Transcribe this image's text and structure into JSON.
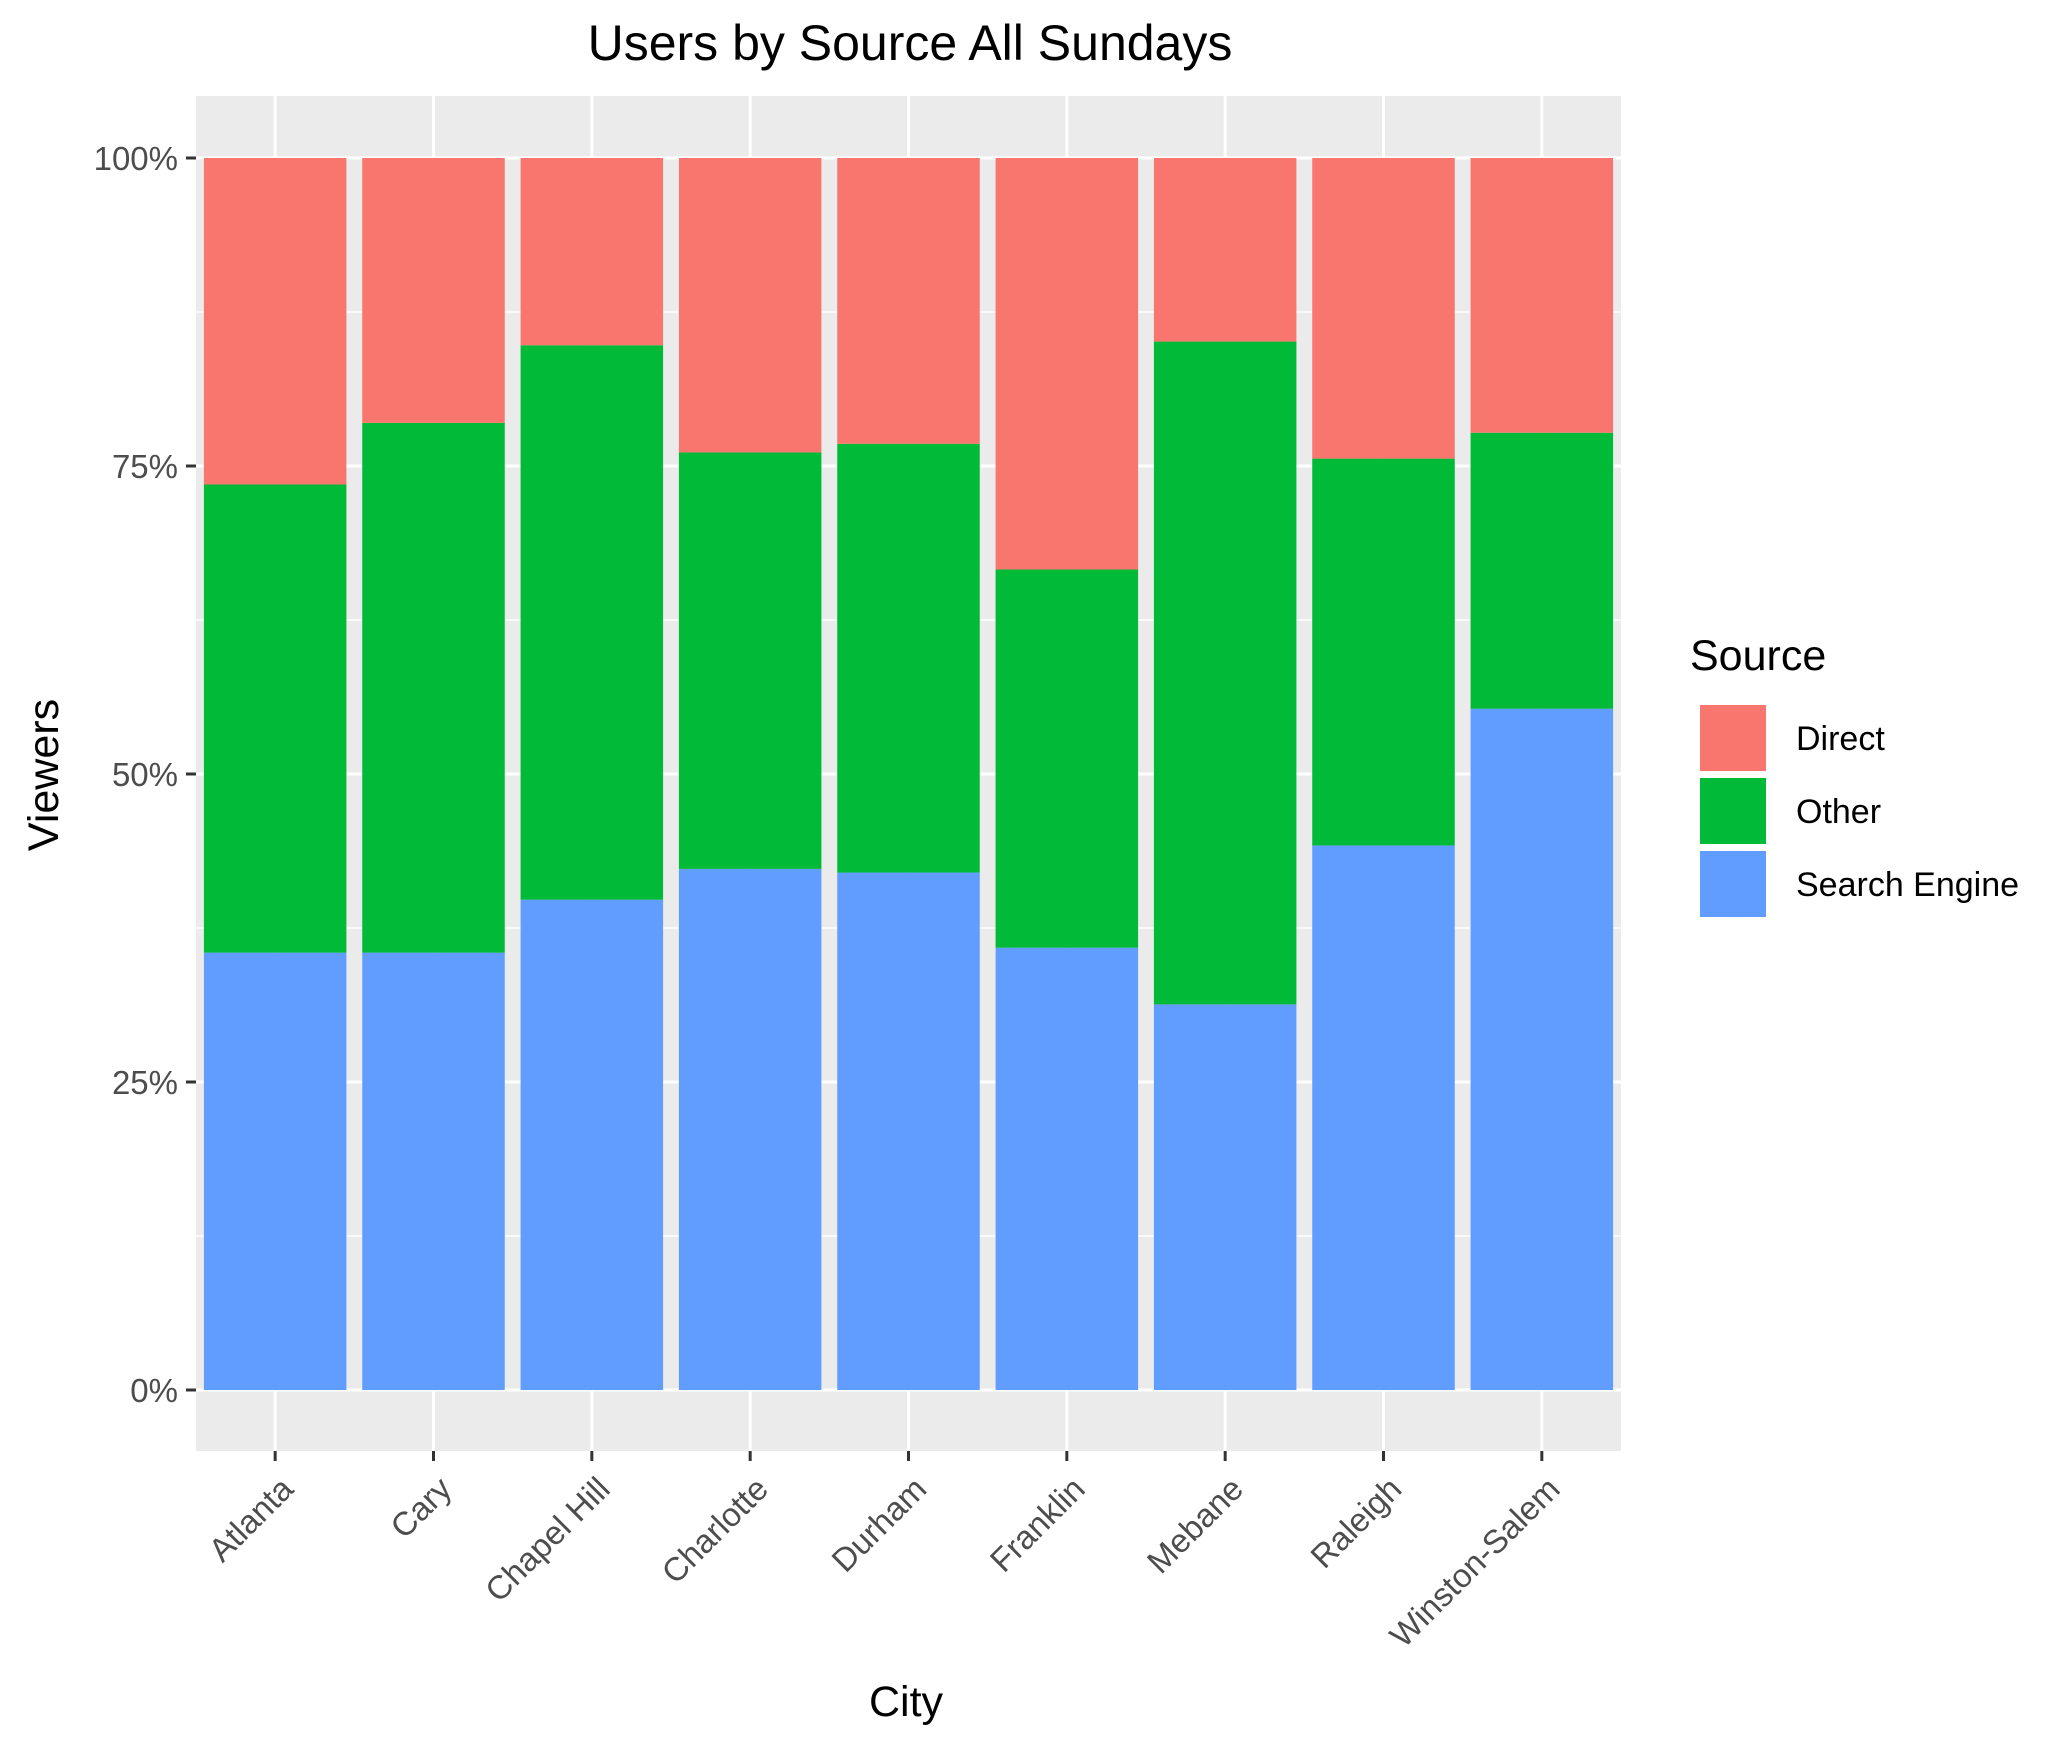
{
  "chart_data": {
    "type": "bar",
    "stacked": true,
    "percent": true,
    "title": "Users by Source All Sundays",
    "xlabel": "City",
    "ylabel": "Viewers",
    "ylim": [
      0,
      100
    ],
    "yticks": [
      "0%",
      "25%",
      "50%",
      "75%",
      "100%"
    ],
    "ytick_values": [
      0,
      25,
      50,
      75,
      100
    ],
    "grid": true,
    "legend_position": "right",
    "legend_title": "Source",
    "categories": [
      "Atlanta",
      "Cary",
      "Chapel Hill",
      "Charlotte",
      "Durham",
      "Franklin",
      "Mebane",
      "Raleigh",
      "Winston-Salem"
    ],
    "series": [
      {
        "name": "Search Engine",
        "color": "#619CFF",
        "values": [
          35.5,
          35.5,
          39.8,
          42.3,
          42.0,
          35.9,
          31.3,
          44.2,
          55.3
        ]
      },
      {
        "name": "Other",
        "color": "#00BA38",
        "values": [
          38.0,
          43.0,
          45.0,
          33.8,
          34.8,
          30.7,
          53.8,
          31.4,
          22.4
        ]
      },
      {
        "name": "Direct",
        "color": "#F8766D",
        "values": [
          26.5,
          21.5,
          15.2,
          23.9,
          23.2,
          33.4,
          14.9,
          24.4,
          22.3
        ]
      }
    ],
    "legend_order": [
      "Direct",
      "Other",
      "Search Engine"
    ]
  }
}
